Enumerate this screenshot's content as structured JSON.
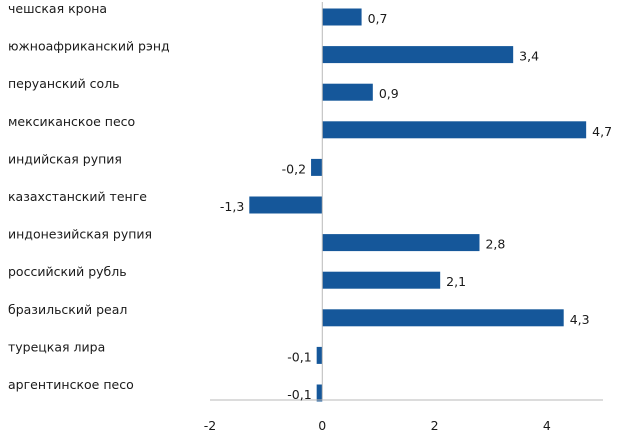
{
  "chart_data": {
    "type": "bar",
    "orientation": "horizontal",
    "categories": [
      "чешская крона",
      "южноафриканский рэнд",
      "перуанский соль",
      "мексиканское песо",
      "индийская рупия",
      "казахстанский тенге",
      "индонезийская рупия",
      "российский рубль",
      "бразильский реал",
      "турецкая лира",
      "аргентинское песо"
    ],
    "values": [
      0.7,
      3.4,
      0.9,
      4.7,
      -0.2,
      -1.3,
      2.8,
      2.1,
      4.3,
      -0.1,
      -0.1
    ],
    "value_labels": [
      "0,7",
      "3,4",
      "0,9",
      "4,7",
      "-0,2",
      "-1,3",
      "2,8",
      "2,1",
      "4,3",
      "-0,1",
      "-0,1"
    ],
    "xlim": [
      -2,
      5
    ],
    "xticks": [
      -2,
      0,
      2,
      4
    ],
    "xtick_labels": [
      "-2",
      "0",
      "2",
      "4"
    ],
    "title": "",
    "xlabel": "",
    "ylabel": "",
    "grid": false,
    "legend": "none",
    "bar_color": "#15579a"
  }
}
